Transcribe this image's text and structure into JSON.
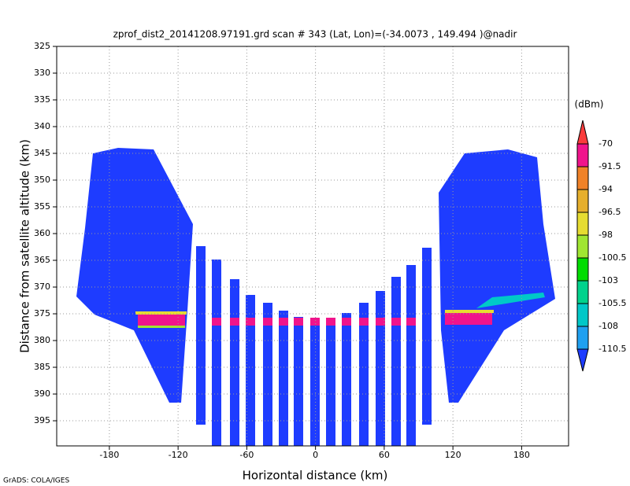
{
  "chart_data": {
    "type": "field",
    "title": "zprof_dist2_20141208.97191.grd  scan # 343  (Lat, Lon)=(-34.0073 , 149.494 )@nadir",
    "x_label": "Horizontal distance (km)",
    "y_label": "Distance from satellite altitude (km)",
    "xlim": [
      -226,
      221
    ],
    "xticks": [
      -180,
      -120,
      -60,
      0,
      60,
      120,
      180
    ],
    "ylim": [
      325,
      399.7
    ],
    "yticks": [
      325,
      330,
      335,
      340,
      345,
      350,
      355,
      360,
      365,
      370,
      375,
      380,
      385,
      390,
      395
    ],
    "y_inverted": true,
    "grid": true,
    "colorbar": {
      "label": "(dBm)",
      "levels": [
        "-70",
        "-91.5",
        "-94",
        "-96.5",
        "-98",
        "-100.5",
        "-103",
        "-105.5",
        "-108",
        "-110.5"
      ],
      "colors": [
        "#fa3c3c",
        "#f0148c",
        "#f08228",
        "#e6af2d",
        "#e6dc32",
        "#a0e632",
        "#00dc00",
        "#00d28c",
        "#00c8c8",
        "#1fa0f0",
        "#1e3cff"
      ]
    },
    "footer": "GrADS: COLA/IGES"
  }
}
